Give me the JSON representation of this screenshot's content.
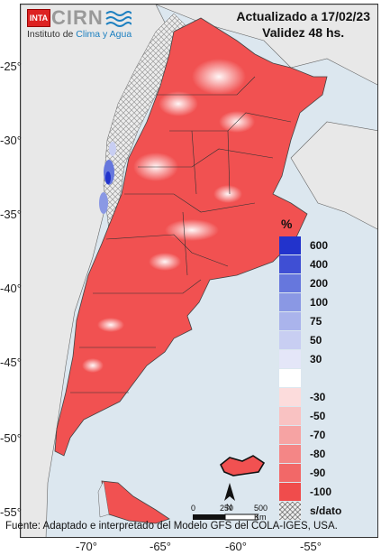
{
  "header": {
    "logo_tag": "INTA",
    "logo_name": "CIRN",
    "institute_prefix": "Instituto de ",
    "institute_highlight": "Clima y Agua",
    "updated": "Actualizado a 17/02/23",
    "validity": "Validez 48 hs."
  },
  "legend": {
    "title": "%",
    "items": [
      {
        "label": "600",
        "color": "#2233cc"
      },
      {
        "label": "400",
        "color": "#3f4fd4"
      },
      {
        "label": "200",
        "color": "#6677dd"
      },
      {
        "label": "100",
        "color": "#8a98e4"
      },
      {
        "label": "75",
        "color": "#aab4ec"
      },
      {
        "label": "50",
        "color": "#c8cef2"
      },
      {
        "label": "30",
        "color": "#e4e6f8"
      },
      {
        "label": "",
        "color": "#ffffff"
      },
      {
        "label": "-30",
        "color": "#fcdcdc"
      },
      {
        "label": "-50",
        "color": "#f9c2c2"
      },
      {
        "label": "-70",
        "color": "#f6a3a3"
      },
      {
        "label": "-80",
        "color": "#f48686"
      },
      {
        "label": "-90",
        "color": "#f26868"
      },
      {
        "label": "-100",
        "color": "#f04c4c"
      },
      {
        "label": "s/dato",
        "color": "hatch"
      }
    ]
  },
  "axes": {
    "y_ticks": [
      "-25°",
      "-30°",
      "-35°",
      "-40°",
      "-45°",
      "-50°",
      "-55°"
    ],
    "x_ticks": [
      "-70°",
      "-65°",
      "-60°",
      "-55°"
    ]
  },
  "scale_bar": {
    "labels": [
      "0",
      "250",
      "500 Km"
    ],
    "north": "N"
  },
  "footer": {
    "source": "Fuente: Adaptado e interpretado del Modelo GFS del COLA-IGES, USA."
  }
}
